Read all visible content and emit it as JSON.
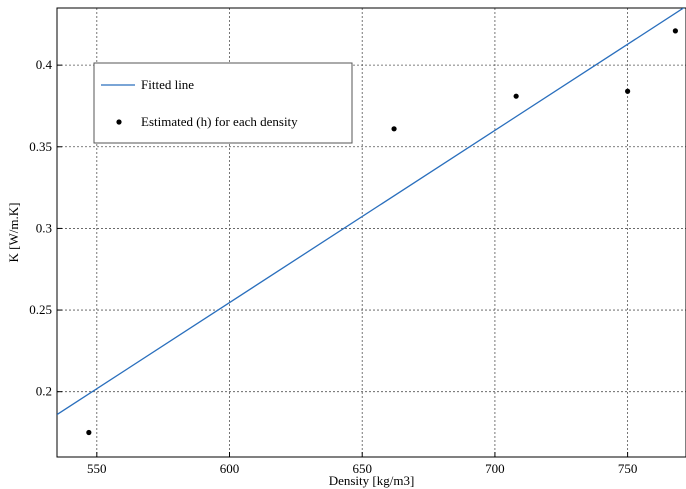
{
  "chart_data": {
    "type": "scatter",
    "xlabel": "Density [kg/m3]",
    "ylabel": "K [W/m.K]",
    "xlim": [
      535,
      772
    ],
    "ylim": [
      0.16,
      0.435
    ],
    "x_ticks": [
      550,
      600,
      650,
      700,
      750
    ],
    "y_ticks": [
      0.2,
      0.25,
      0.3,
      0.35,
      0.4
    ],
    "x_tick_labels": [
      "550",
      "600",
      "650",
      "700",
      "750"
    ],
    "y_tick_labels": [
      "0.2",
      "0.25",
      "0.3",
      "0.35",
      "0.4"
    ],
    "grid": true,
    "legend_position": "upper-left",
    "series": [
      {
        "name": "Fitted line",
        "kind": "line",
        "color": "#2a6fbd",
        "x": [
          535,
          772
        ],
        "y": [
          0.186,
          0.436
        ]
      },
      {
        "name": "Estimated (h) for each density",
        "kind": "scatter",
        "color": "#000000",
        "x": [
          547,
          662,
          708,
          750,
          768
        ],
        "y": [
          0.175,
          0.361,
          0.381,
          0.384,
          0.421
        ]
      }
    ]
  }
}
